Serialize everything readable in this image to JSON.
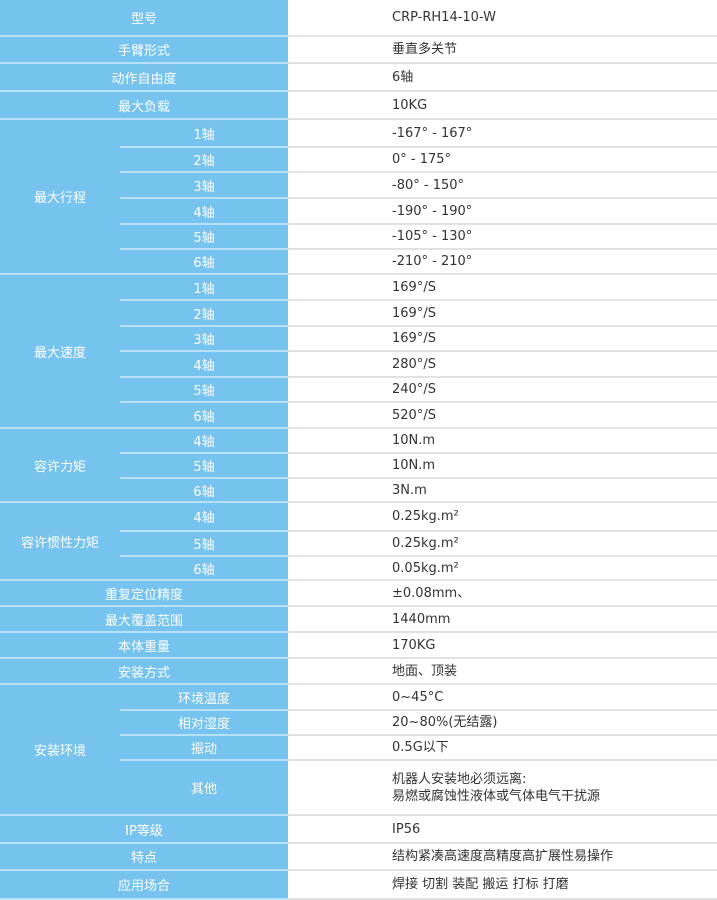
{
  "colors": {
    "header_bg": "#76c3ef",
    "label_text": "#ffffff",
    "value_text": "#333333"
  },
  "rows": [
    {
      "label": "型号",
      "value": "CRP-RH14-10-W",
      "h": 36
    },
    {
      "label": "手臂形式",
      "value": "垂直多关节",
      "h": 27
    },
    {
      "label": "动作自由度",
      "value": "6轴",
      "h": 28
    },
    {
      "label": "最大负载",
      "value": "10KG",
      "h": 28
    },
    {
      "group": "最大行程",
      "items": [
        {
          "sub": "1轴",
          "value": "-167° - 167°",
          "h": 28
        },
        {
          "sub": "2轴",
          "value": "0° - 175°",
          "h": 25
        },
        {
          "sub": "3轴",
          "value": "-80° - 150°",
          "h": 26
        },
        {
          "sub": "4轴",
          "value": "-190° - 190°",
          "h": 26
        },
        {
          "sub": "5轴",
          "value": "-105° - 130°",
          "h": 25
        },
        {
          "sub": "6轴",
          "value": "-210° - 210°",
          "h": 25
        }
      ]
    },
    {
      "group": "最大速度",
      "items": [
        {
          "sub": "1轴",
          "value": "169°/S",
          "h": 26
        },
        {
          "sub": "2轴",
          "value": "169°/S",
          "h": 26
        },
        {
          "sub": "3轴",
          "value": "169°/S",
          "h": 25
        },
        {
          "sub": "4轴",
          "value": "280°/S",
          "h": 26
        },
        {
          "sub": "5轴",
          "value": "240°/S",
          "h": 25
        },
        {
          "sub": "6轴",
          "value": "520°/S",
          "h": 26
        }
      ]
    },
    {
      "group": "容许力矩",
      "items": [
        {
          "sub": "4轴",
          "value": "10N.m",
          "h": 25
        },
        {
          "sub": "5轴",
          "value": "10N.m",
          "h": 25
        },
        {
          "sub": "6轴",
          "value": "3N.m",
          "h": 24
        }
      ]
    },
    {
      "group": "容许惯性力矩",
      "items": [
        {
          "sub": "4轴",
          "value": "0.25kg.m²",
          "h": 29
        },
        {
          "sub": "5轴",
          "value": "0.25kg.m²",
          "h": 25
        },
        {
          "sub": "6轴",
          "value": "0.05kg.m²",
          "h": 24
        }
      ]
    },
    {
      "label": "重复定位精度",
      "value": "±0.08mm、",
      "h": 26
    },
    {
      "label": "最大覆盖范围",
      "value": "1440mm",
      "h": 26
    },
    {
      "label": "本体重量",
      "value": "170KG",
      "h": 26
    },
    {
      "label": "安装方式",
      "value": "地面、顶装",
      "h": 26
    },
    {
      "group": "安装环境",
      "items": [
        {
          "sub": "环境温度",
          "value": "0~45°C",
          "h": 26
        },
        {
          "sub": "相对湿度",
          "value": "20~80%(无结露)",
          "h": 25
        },
        {
          "sub": "振动",
          "value": "0.5G以下",
          "h": 25
        },
        {
          "sub": "其他",
          "value": "机器人安装地必须远离:",
          "value2": "易燃或腐蚀性液体或气体电气干扰源",
          "h": 55
        }
      ]
    },
    {
      "label": "IP等级",
      "value": "IP56",
      "h": 28
    },
    {
      "label": "特点",
      "value": "结构紧凑高速度高精度高扩展性易操作",
      "h": 27
    },
    {
      "label": "应用场合",
      "value": "焊接 切割 装配 搬运 打标 打磨",
      "h": 29
    }
  ]
}
